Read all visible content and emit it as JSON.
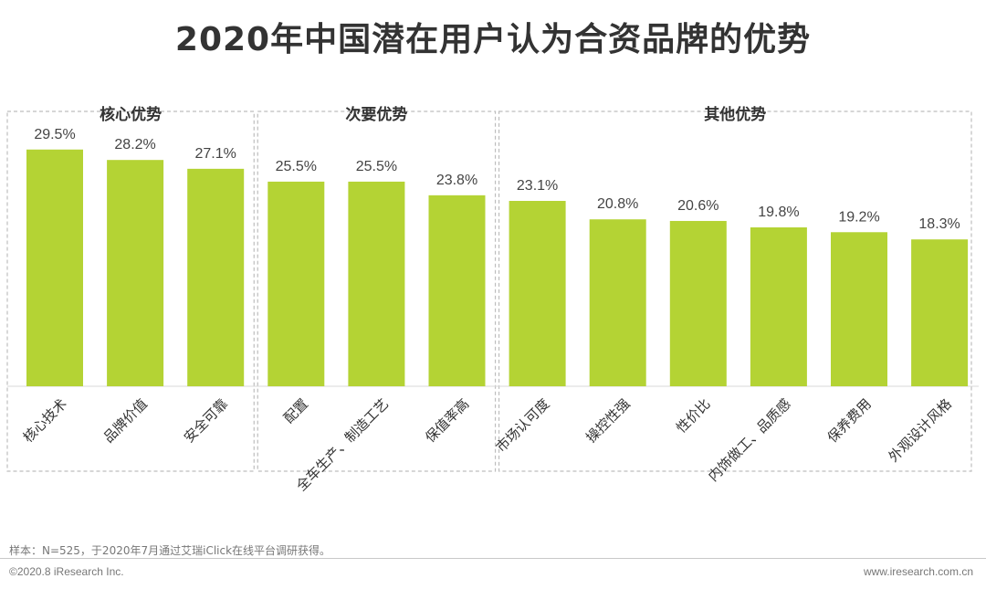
{
  "page": {
    "title": "2020年中国潜在用户认为合资品牌的优势",
    "footnote": "样本：N=525，于2020年7月通过艾瑞iClick在线平台调研获得。",
    "copyright": "©2020.8 iResearch Inc.",
    "site": "www.iresearch.com.cn"
  },
  "chart_data": {
    "type": "bar",
    "title": "2020年中国潜在用户认为合资品牌的优势",
    "categories": [
      "核心技术",
      "品牌价值",
      "安全可靠",
      "配置",
      "全车生产、制造工艺",
      "保值率高",
      "市场认可度",
      "操控性强",
      "性价比",
      "内饰做工、品质感",
      "保养费用",
      "外观设计风格"
    ],
    "values": [
      29.5,
      28.2,
      27.1,
      25.5,
      25.5,
      23.8,
      23.1,
      20.8,
      20.6,
      19.8,
      19.2,
      18.3
    ],
    "value_labels": [
      "29.5%",
      "28.2%",
      "27.1%",
      "25.5%",
      "25.5%",
      "23.8%",
      "23.1%",
      "20.8%",
      "20.6%",
      "19.8%",
      "19.2%",
      "18.3%"
    ],
    "groups": [
      {
        "label": "核心优势",
        "start": 0,
        "end": 2
      },
      {
        "label": "次要优势",
        "start": 3,
        "end": 5
      },
      {
        "label": "其他优势",
        "start": 6,
        "end": 11
      }
    ],
    "ylim": [
      0,
      33
    ],
    "bar_color": "#b4d334",
    "box_color": "#bdbdbd",
    "grid": false,
    "legend": "none"
  }
}
